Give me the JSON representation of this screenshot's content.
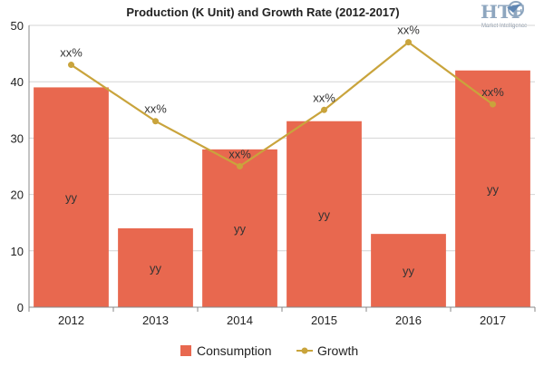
{
  "logo": {
    "wordmark": "HTF",
    "tagline": "Market Intelligence"
  },
  "chart_data": {
    "type": "bar",
    "title": "Production (K Unit) and Growth Rate (2012-2017)",
    "categories": [
      "2012",
      "2013",
      "2014",
      "2015",
      "2016",
      "2017"
    ],
    "ylim": [
      0,
      50
    ],
    "yticks": [
      0,
      10,
      20,
      30,
      40,
      50
    ],
    "grid": true,
    "legend_position": "bottom",
    "series": [
      {
        "name": "Consumption",
        "type": "bar",
        "color": "#e8684f",
        "values": [
          39,
          14,
          28,
          33,
          13,
          42
        ],
        "data_labels": [
          "yy",
          "yy",
          "yy",
          "yy",
          "yy",
          "yy"
        ]
      },
      {
        "name": "Growth",
        "type": "line",
        "color": "#c9a43c",
        "values": [
          43,
          33,
          25,
          35,
          47,
          36
        ],
        "data_labels": [
          "xx%",
          "xx%",
          "xx%",
          "xx%",
          "xx%",
          "xx%"
        ]
      }
    ]
  }
}
